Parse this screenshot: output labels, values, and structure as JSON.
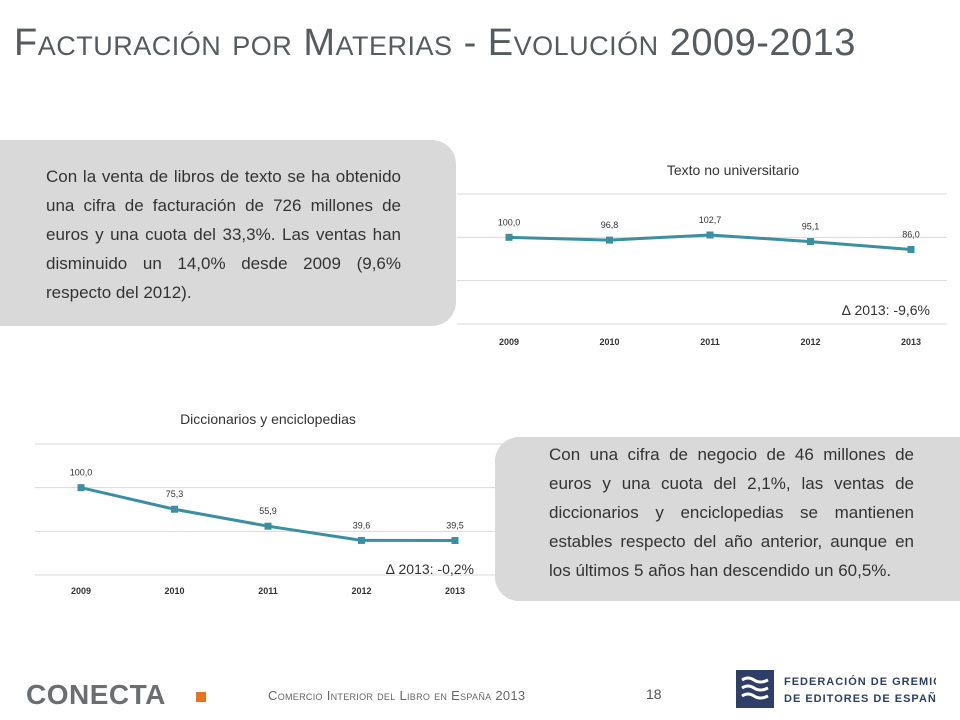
{
  "page": {
    "title": "Facturación por Materias - Evolución 2009-2013",
    "footer": "Comercio Interior del Libro en España 2013",
    "page_number": "18",
    "logo_left": "CONECTA",
    "logo_right": [
      "FEDERACIÓN DE GREMIOS",
      "DE EDITORES DE ESPAÑA"
    ]
  },
  "text_boxes": [
    "Con la venta de libros de texto se ha obtenido una cifra de facturación de 726 millones de euros y una cuota del 33,3%. Las ventas han disminuido un 14,0% desde 2009 (9,6% respecto del 2012).",
    "Con una cifra de negocio de 46 millones de euros y una cuota del 2,1%, las ventas de diccionarios y enciclopedias se mantienen estables respecto del año anterior, aunque en los últimos 5 años han descendido un 60,5%."
  ],
  "colors": {
    "line": "#3a8fa0",
    "box": "#d9d9d9",
    "grid": "#d9d9d9"
  },
  "chart_data": [
    {
      "type": "line",
      "title": "Texto no universitario",
      "categories": [
        "2009",
        "2010",
        "2011",
        "2012",
        "2013"
      ],
      "values": [
        100.0,
        96.8,
        102.7,
        95.1,
        86.0
      ],
      "value_labels": [
        "100,0",
        "96,8",
        "102,7",
        "95,1",
        "86,0"
      ],
      "annotation": "∆ 2013: -9,6%",
      "xlabel": "",
      "ylabel": "",
      "ylim": [
        0,
        150
      ],
      "grid": true,
      "legend": "none"
    },
    {
      "type": "line",
      "title": "Diccionarios y enciclopedias",
      "categories": [
        "2009",
        "2010",
        "2011",
        "2012",
        "2013"
      ],
      "values": [
        100.0,
        75.3,
        55.9,
        39.6,
        39.5
      ],
      "value_labels": [
        "100,0",
        "75,3",
        "55,9",
        "39,6",
        "39,5"
      ],
      "annotation": "∆ 2013: -0,2%",
      "xlabel": "",
      "ylabel": "",
      "ylim": [
        0,
        150
      ],
      "grid": true,
      "legend": "none"
    }
  ]
}
